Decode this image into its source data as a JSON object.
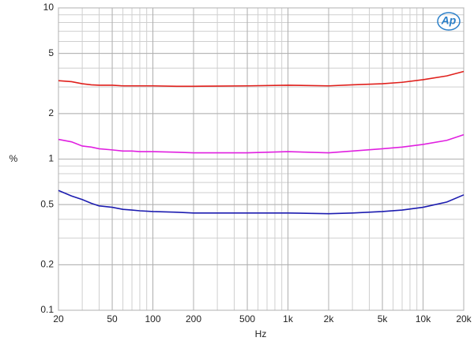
{
  "chart_data": {
    "type": "line",
    "logo": "Ap",
    "xlabel": "Hz",
    "ylabel": "%",
    "xscale": "log",
    "yscale": "log",
    "grid": true,
    "x": [
      20,
      25,
      30,
      35,
      40,
      50,
      60,
      70,
      80,
      100,
      150,
      200,
      300,
      500,
      1000,
      2000,
      3000,
      5000,
      7000,
      10000,
      15000,
      20000
    ],
    "series": [
      {
        "color": "#e0201c",
        "values": [
          3.3,
          3.25,
          3.15,
          3.1,
          3.08,
          3.08,
          3.05,
          3.05,
          3.05,
          3.05,
          3.03,
          3.03,
          3.04,
          3.05,
          3.08,
          3.05,
          3.1,
          3.15,
          3.22,
          3.35,
          3.55,
          3.8
        ]
      },
      {
        "color": "#e020e0",
        "values": [
          1.35,
          1.3,
          1.22,
          1.2,
          1.17,
          1.15,
          1.13,
          1.13,
          1.12,
          1.12,
          1.11,
          1.1,
          1.1,
          1.1,
          1.12,
          1.1,
          1.13,
          1.17,
          1.2,
          1.25,
          1.33,
          1.45
        ]
      },
      {
        "color": "#1c1cb0",
        "values": [
          0.62,
          0.57,
          0.54,
          0.51,
          0.49,
          0.48,
          0.465,
          0.46,
          0.455,
          0.45,
          0.445,
          0.44,
          0.44,
          0.44,
          0.44,
          0.435,
          0.44,
          0.45,
          0.46,
          0.48,
          0.52,
          0.58
        ]
      }
    ],
    "xlim": [
      20,
      20000
    ],
    "xticks": [
      20,
      50,
      100,
      200,
      500,
      {
        "value": 1000,
        "label": "1k"
      },
      {
        "value": 2000,
        "label": "2k"
      },
      {
        "value": 5000,
        "label": "5k"
      },
      {
        "value": 10000,
        "label": "10k"
      },
      {
        "value": 20000,
        "label": "20k"
      }
    ],
    "ylim": [
      0.1,
      10
    ],
    "yticks": [
      0.1,
      0.2,
      0.5,
      1,
      2,
      5,
      10
    ]
  }
}
